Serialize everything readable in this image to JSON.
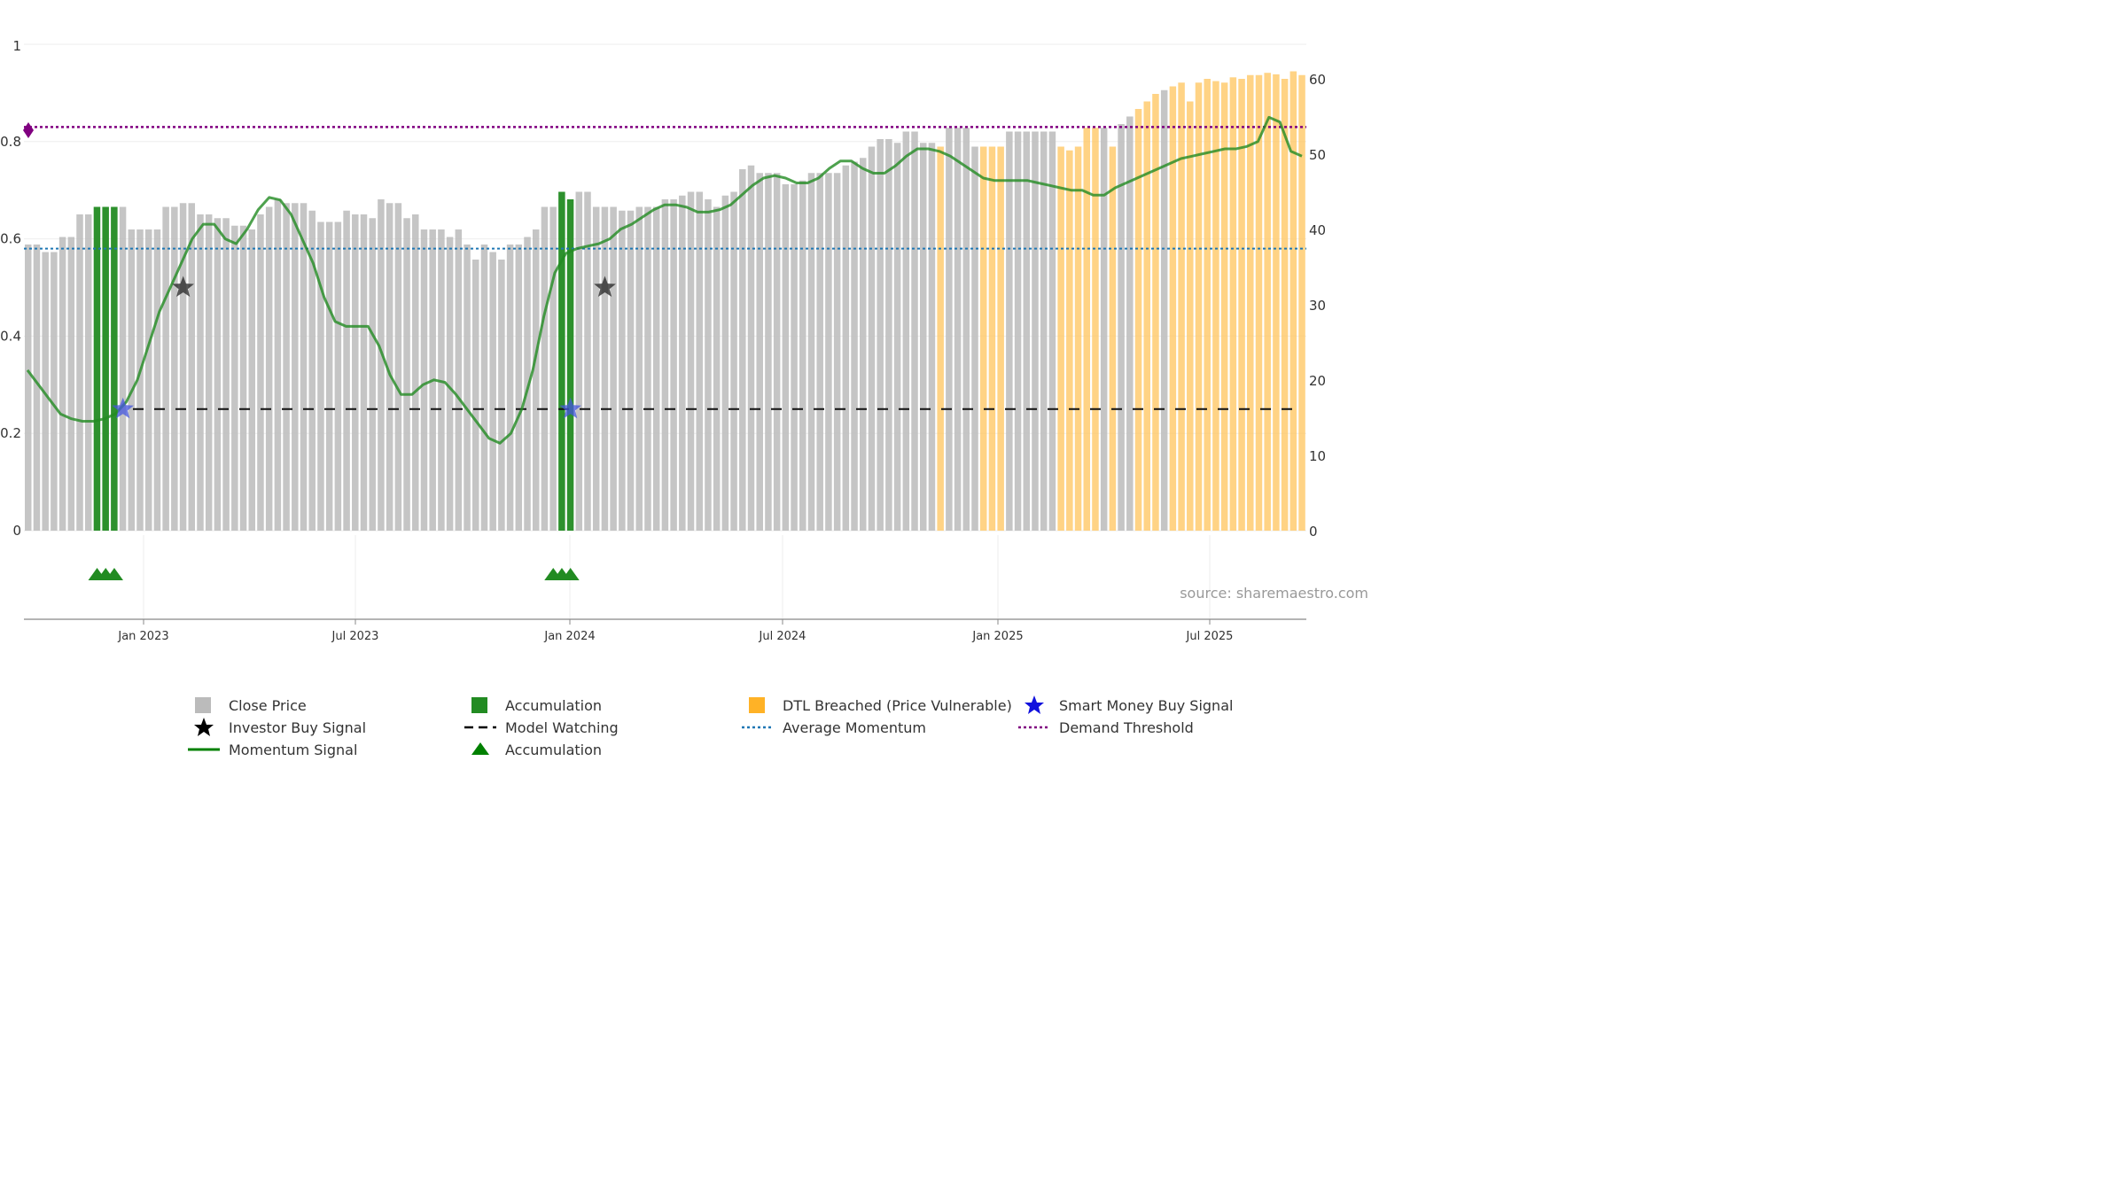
{
  "chart_data": {
    "type": "bar",
    "title": "",
    "source_text": "source: sharemaestro.com",
    "left_axis": {
      "ticks": [
        "0",
        "0.2",
        "0.4",
        "0.6",
        "0.8",
        "1"
      ],
      "range": [
        0,
        1
      ]
    },
    "right_axis": {
      "ticks": [
        "0",
        "10",
        "20",
        "30",
        "40",
        "50",
        "60"
      ],
      "range": [
        0,
        60
      ]
    },
    "x_axis": {
      "ticks": [
        "Jan 2023",
        "Jul 2023",
        "Jan 2024",
        "Jul 2024",
        "Jan 2025",
        "Jul 2025"
      ]
    },
    "grid": true,
    "colors": {
      "close_price": "#bbbbbb",
      "accumulation": "#228b22",
      "dtl_breached": "#ffc866",
      "momentum": "#228b22",
      "model_watching": "#111111",
      "average_momentum": "#1f77b4",
      "demand_threshold": "#800080",
      "investor_star": "#222222",
      "smart_money_star": "#4455dd"
    },
    "close_price_right_axis": [
      38,
      38,
      37,
      37,
      39,
      39,
      42,
      42,
      43,
      43,
      43,
      43,
      40,
      40,
      40,
      40,
      43,
      43,
      43.5,
      43.5,
      42,
      42,
      41.5,
      41.5,
      40.5,
      40.5,
      40,
      42,
      43,
      44,
      43.5,
      43.5,
      43.5,
      42.5,
      41,
      41,
      41,
      42.5,
      42,
      42,
      41.5,
      44,
      43.5,
      43.5,
      41.5,
      42,
      40,
      40,
      40,
      39,
      40,
      38,
      36,
      38,
      37,
      36,
      38,
      38,
      39,
      40,
      43,
      43,
      45,
      44,
      45,
      45,
      43,
      43,
      43,
      42.5,
      42.5,
      43,
      43,
      43,
      44,
      44,
      44.5,
      45,
      45,
      44,
      43,
      44.5,
      45,
      48,
      48.5,
      47.5,
      47.5,
      47.5,
      46,
      46,
      46.5,
      47.5,
      47.5,
      47.5,
      47.5,
      48.5,
      49,
      49.5,
      51,
      52,
      52,
      51.5,
      53,
      53,
      51.5,
      51.5,
      51,
      53.5,
      53.5,
      53.5,
      51,
      51,
      51,
      51,
      53,
      53,
      53,
      53,
      53,
      53,
      51,
      50.5,
      51,
      53.5,
      53.5,
      53.5,
      51,
      54,
      55,
      56,
      57,
      58,
      58.5,
      59,
      59.5,
      57,
      59.5,
      60,
      59.7,
      59.5,
      60.2,
      60,
      60.5,
      60.5,
      60.8,
      60.6,
      60,
      61,
      60.5
    ],
    "bar_category": [
      "close",
      "close",
      "close",
      "close",
      "close",
      "close",
      "close",
      "close",
      "acc",
      "acc",
      "acc",
      "close",
      "close",
      "close",
      "close",
      "close",
      "close",
      "close",
      "close",
      "close",
      "close",
      "close",
      "close",
      "close",
      "close",
      "close",
      "close",
      "close",
      "close",
      "close",
      "close",
      "close",
      "close",
      "close",
      "close",
      "close",
      "close",
      "close",
      "close",
      "close",
      "close",
      "close",
      "close",
      "close",
      "close",
      "close",
      "close",
      "close",
      "close",
      "close",
      "close",
      "close",
      "close",
      "close",
      "close",
      "close",
      "close",
      "close",
      "close",
      "close",
      "close",
      "close",
      "acc",
      "acc",
      "close",
      "close",
      "close",
      "close",
      "close",
      "close",
      "close",
      "close",
      "close",
      "close",
      "close",
      "close",
      "close",
      "close",
      "close",
      "close",
      "close",
      "close",
      "close",
      "close",
      "close",
      "close",
      "close",
      "close",
      "close",
      "close",
      "close",
      "close",
      "close",
      "close",
      "close",
      "close",
      "close",
      "close",
      "close",
      "close",
      "close",
      "close",
      "close",
      "close",
      "close",
      "close",
      "dtl",
      "close",
      "close",
      "close",
      "close",
      "dtl",
      "dtl",
      "dtl",
      "close",
      "close",
      "close",
      "close",
      "close",
      "close",
      "dtl",
      "dtl",
      "dtl",
      "dtl",
      "dtl",
      "close",
      "dtl",
      "close",
      "close",
      "dtl",
      "dtl",
      "dtl",
      "close",
      "dtl",
      "dtl",
      "dtl",
      "dtl",
      "dtl",
      "dtl",
      "dtl",
      "dtl",
      "dtl",
      "dtl",
      "dtl",
      "dtl",
      "dtl",
      "dtl",
      "dtl",
      "dtl",
      "dtl",
      "dtl",
      "dtl",
      "dtl",
      "dtl",
      "dtl",
      "dtl",
      "dtl",
      "dtl"
    ],
    "momentum_left_axis": [
      0.33,
      0.3,
      0.27,
      0.24,
      0.23,
      0.225,
      0.225,
      0.23,
      0.24,
      0.265,
      0.31,
      0.38,
      0.45,
      0.5,
      0.55,
      0.6,
      0.63,
      0.63,
      0.6,
      0.59,
      0.62,
      0.66,
      0.685,
      0.68,
      0.65,
      0.6,
      0.55,
      0.48,
      0.43,
      0.42,
      0.42,
      0.42,
      0.38,
      0.32,
      0.28,
      0.28,
      0.3,
      0.31,
      0.305,
      0.28,
      0.25,
      0.22,
      0.19,
      0.18,
      0.2,
      0.25,
      0.33,
      0.44,
      0.53,
      0.57,
      0.58,
      0.585,
      0.59,
      0.6,
      0.62,
      0.63,
      0.645,
      0.66,
      0.67,
      0.67,
      0.665,
      0.655,
      0.655,
      0.66,
      0.67,
      0.69,
      0.71,
      0.725,
      0.73,
      0.725,
      0.715,
      0.715,
      0.725,
      0.745,
      0.76,
      0.76,
      0.745,
      0.735,
      0.735,
      0.75,
      0.77,
      0.785,
      0.785,
      0.78,
      0.77,
      0.755,
      0.74,
      0.725,
      0.72,
      0.72,
      0.72,
      0.72,
      0.715,
      0.71,
      0.705,
      0.7,
      0.7,
      0.69,
      0.69,
      0.705,
      0.715,
      0.725,
      0.735,
      0.745,
      0.755,
      0.765,
      0.77,
      0.775,
      0.78,
      0.785,
      0.785,
      0.79,
      0.8,
      0.85,
      0.84,
      0.78,
      0.77
    ],
    "average_momentum": 0.58,
    "demand_threshold": 0.83,
    "model_watching_value": 0.25,
    "investor_buy_signals": [
      {
        "x_index": 18,
        "y": 0.5
      },
      {
        "x_index": 67,
        "y": 0.5
      }
    ],
    "smart_money_buy_signals": [
      {
        "x_index": 11,
        "y": 0.25
      },
      {
        "x_index": 63,
        "y": 0.25
      }
    ],
    "accumulation_markers_x_index": [
      8,
      9,
      10,
      61,
      62,
      63
    ]
  },
  "legend": [
    {
      "label": "Close Price",
      "icon": "square-swatch",
      "color": "#bbbbbb"
    },
    {
      "label": "Accumulation",
      "icon": "square-swatch",
      "color": "#228b22"
    },
    {
      "label": "DTL Breached (Price Vulnerable)",
      "icon": "square-swatch",
      "color": "#ffa500"
    },
    {
      "label": "Smart Money Buy Signal",
      "icon": "star",
      "color": "#1111dd"
    },
    {
      "label": "Investor Buy Signal",
      "icon": "star",
      "color": "#000000"
    },
    {
      "label": "Model Watching",
      "icon": "dashed-line",
      "color": "#000000"
    },
    {
      "label": "Average Momentum",
      "icon": "dotted-line",
      "color": "#1f77b4"
    },
    {
      "label": "Demand Threshold",
      "icon": "dotted-line",
      "color": "#800080"
    },
    {
      "label": "Momentum Signal",
      "icon": "solid-line",
      "color": "#008000"
    },
    {
      "label": "Accumulation",
      "icon": "triangle",
      "color": "#008000"
    }
  ]
}
